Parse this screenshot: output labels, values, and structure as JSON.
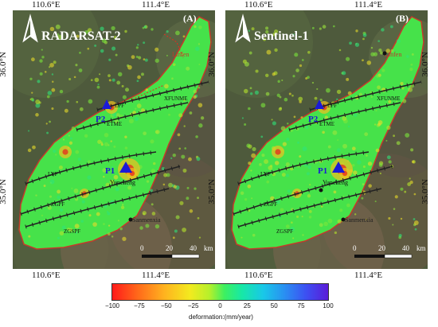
{
  "longitude_top": [
    "110.6°E",
    "111.4°E"
  ],
  "longitude_bottom": [
    "110.6°E",
    "111.4°E"
  ],
  "latitude_labels": [
    "36.0°N",
    "35.0°N"
  ],
  "panels": [
    {
      "panel_label": "(A)",
      "sensor": "RADARSAT-2"
    },
    {
      "panel_label": "(B)",
      "sensor": "Sentinel-1"
    }
  ],
  "places": {
    "linfen": "Linfen",
    "yuncheng": "Yuncheng",
    "sanmenxia": "Sanmenxia"
  },
  "points": {
    "p1": "P1",
    "p2": "P2"
  },
  "faults": {
    "lpf": "LPF",
    "xfunme": "XFUNME",
    "etme": "ETME",
    "lyf": "LYF",
    "zgpf": "ZGPF",
    "zgspf": "ZGSPF"
  },
  "scalebar": {
    "t0": "0",
    "t20": "20",
    "t40": "40",
    "unit": "km"
  },
  "colorbar": {
    "ticks": [
      "−100",
      "−75",
      "−50",
      "−25",
      "0",
      "25",
      "50",
      "75",
      "100"
    ],
    "label": "deformation:(mm/year)",
    "min": -100,
    "max": 100
  },
  "colors": {
    "basin": "#46e24a",
    "fault": "#222222",
    "point": "#1a1ad8",
    "point_label": "#1a1ad8",
    "red_speckle": "#e8281e"
  }
}
